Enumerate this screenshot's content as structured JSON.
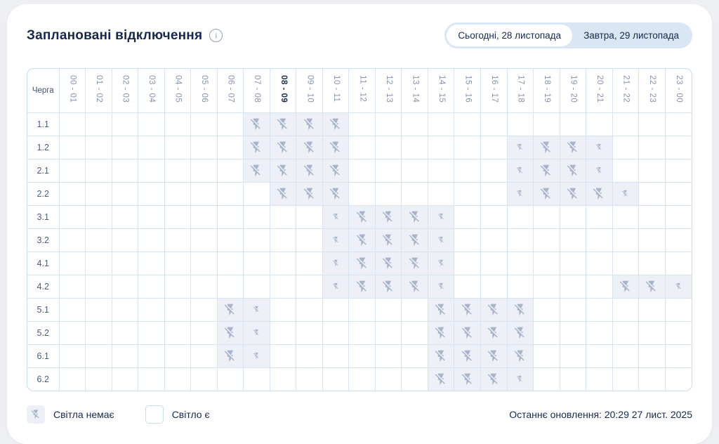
{
  "header": {
    "title": "Заплановані відключення",
    "info_icon": "i"
  },
  "tabs": {
    "items": [
      {
        "label": "Сьогодні, 28 листопада",
        "active": true
      },
      {
        "label": "Завтра, 29 листопада",
        "active": false
      }
    ]
  },
  "table": {
    "corner_label": "Черга",
    "hours": [
      "00 - 01",
      "01 - 02",
      "02 - 03",
      "03 - 04",
      "04 - 05",
      "05 - 06",
      "06 - 07",
      "07 - 08",
      "08 - 09",
      "09 - 10",
      "10 - 11",
      "11 - 12",
      "12 - 13",
      "13 - 14",
      "14 - 15",
      "15 - 16",
      "16 - 17",
      "17 - 18",
      "18 - 19",
      "19 - 20",
      "20 - 21",
      "21 - 22",
      "22 - 23",
      "23 - 00"
    ],
    "current_hour": "08 - 09",
    "cell_states_legend": {
      "0": "light on",
      "1": "full hour outage",
      "0.5": "partial hour outage"
    },
    "rows": [
      {
        "queue": "1.1",
        "cells": [
          0,
          0,
          0,
          0,
          0,
          0,
          0,
          1,
          1,
          1,
          1,
          0,
          0,
          0,
          0,
          0,
          0,
          0,
          0,
          0,
          0,
          0,
          0,
          0
        ]
      },
      {
        "queue": "1.2",
        "cells": [
          0,
          0,
          0,
          0,
          0,
          0,
          0,
          1,
          1,
          1,
          1,
          0,
          0,
          0,
          0,
          0,
          0,
          0.5,
          1,
          1,
          0.5,
          0,
          0,
          0
        ]
      },
      {
        "queue": "2.1",
        "cells": [
          0,
          0,
          0,
          0,
          0,
          0,
          0,
          1,
          1,
          1,
          1,
          0,
          0,
          0,
          0,
          0,
          0,
          0.5,
          1,
          1,
          0.5,
          0,
          0,
          0
        ]
      },
      {
        "queue": "2.2",
        "cells": [
          0,
          0,
          0,
          0,
          0,
          0,
          0,
          0,
          1,
          1,
          1,
          0,
          0,
          0,
          0,
          0,
          0,
          0.5,
          1,
          1,
          1,
          0.5,
          0,
          0
        ]
      },
      {
        "queue": "3.1",
        "cells": [
          0,
          0,
          0,
          0,
          0,
          0,
          0,
          0,
          0,
          0,
          0.5,
          1,
          1,
          1,
          0.5,
          0,
          0,
          0,
          0,
          0,
          0,
          0,
          0,
          0
        ]
      },
      {
        "queue": "3.2",
        "cells": [
          0,
          0,
          0,
          0,
          0,
          0,
          0,
          0,
          0,
          0,
          0.5,
          1,
          1,
          1,
          0.5,
          0,
          0,
          0,
          0,
          0,
          0,
          0,
          0,
          0
        ]
      },
      {
        "queue": "4.1",
        "cells": [
          0,
          0,
          0,
          0,
          0,
          0,
          0,
          0,
          0,
          0,
          0.5,
          1,
          1,
          1,
          0.5,
          0,
          0,
          0,
          0,
          0,
          0,
          0,
          0,
          0
        ]
      },
      {
        "queue": "4.2",
        "cells": [
          0,
          0,
          0,
          0,
          0,
          0,
          0,
          0,
          0,
          0,
          0.5,
          1,
          1,
          1,
          0.5,
          0,
          0,
          0,
          0,
          0,
          0,
          1,
          1,
          0.5
        ]
      },
      {
        "queue": "5.1",
        "cells": [
          0,
          0,
          0,
          0,
          0,
          0,
          1,
          0.5,
          0,
          0,
          0,
          0,
          0,
          0,
          1,
          1,
          1,
          1,
          0,
          0,
          0,
          0,
          0,
          0
        ]
      },
      {
        "queue": "5.2",
        "cells": [
          0,
          0,
          0,
          0,
          0,
          0,
          1,
          0.5,
          0,
          0,
          0,
          0,
          0,
          0,
          1,
          1,
          1,
          1,
          0,
          0,
          0,
          0,
          0,
          0
        ]
      },
      {
        "queue": "6.1",
        "cells": [
          0,
          0,
          0,
          0,
          0,
          0,
          1,
          0.5,
          0,
          0,
          0,
          0,
          0,
          0,
          1,
          1,
          1,
          1,
          0,
          0,
          0,
          0,
          0,
          0
        ]
      },
      {
        "queue": "6.2",
        "cells": [
          0,
          0,
          0,
          0,
          0,
          0,
          0,
          0,
          0,
          0,
          0,
          0,
          0,
          0,
          1,
          1,
          1,
          0.5,
          0,
          0,
          0,
          0,
          0,
          0
        ]
      }
    ]
  },
  "legend": {
    "no_light_label": "Світла немає",
    "no_light_icon": "flash-off-icon",
    "light_label": "Світло є"
  },
  "footer": {
    "last_update": "Останнє оновлення: 20:29 27 лист. 2025"
  },
  "colors": {
    "page_background": "#edeff3",
    "card_background": "#ffffff",
    "text_navy": "#16294d",
    "hour_muted": "#8593ae",
    "grid_border": "#d7e5f3",
    "outage_cell_fill": "#edf0f7",
    "icon_grey_blue": "#a9b4ca",
    "tabs_background": "#d9e6f3"
  }
}
